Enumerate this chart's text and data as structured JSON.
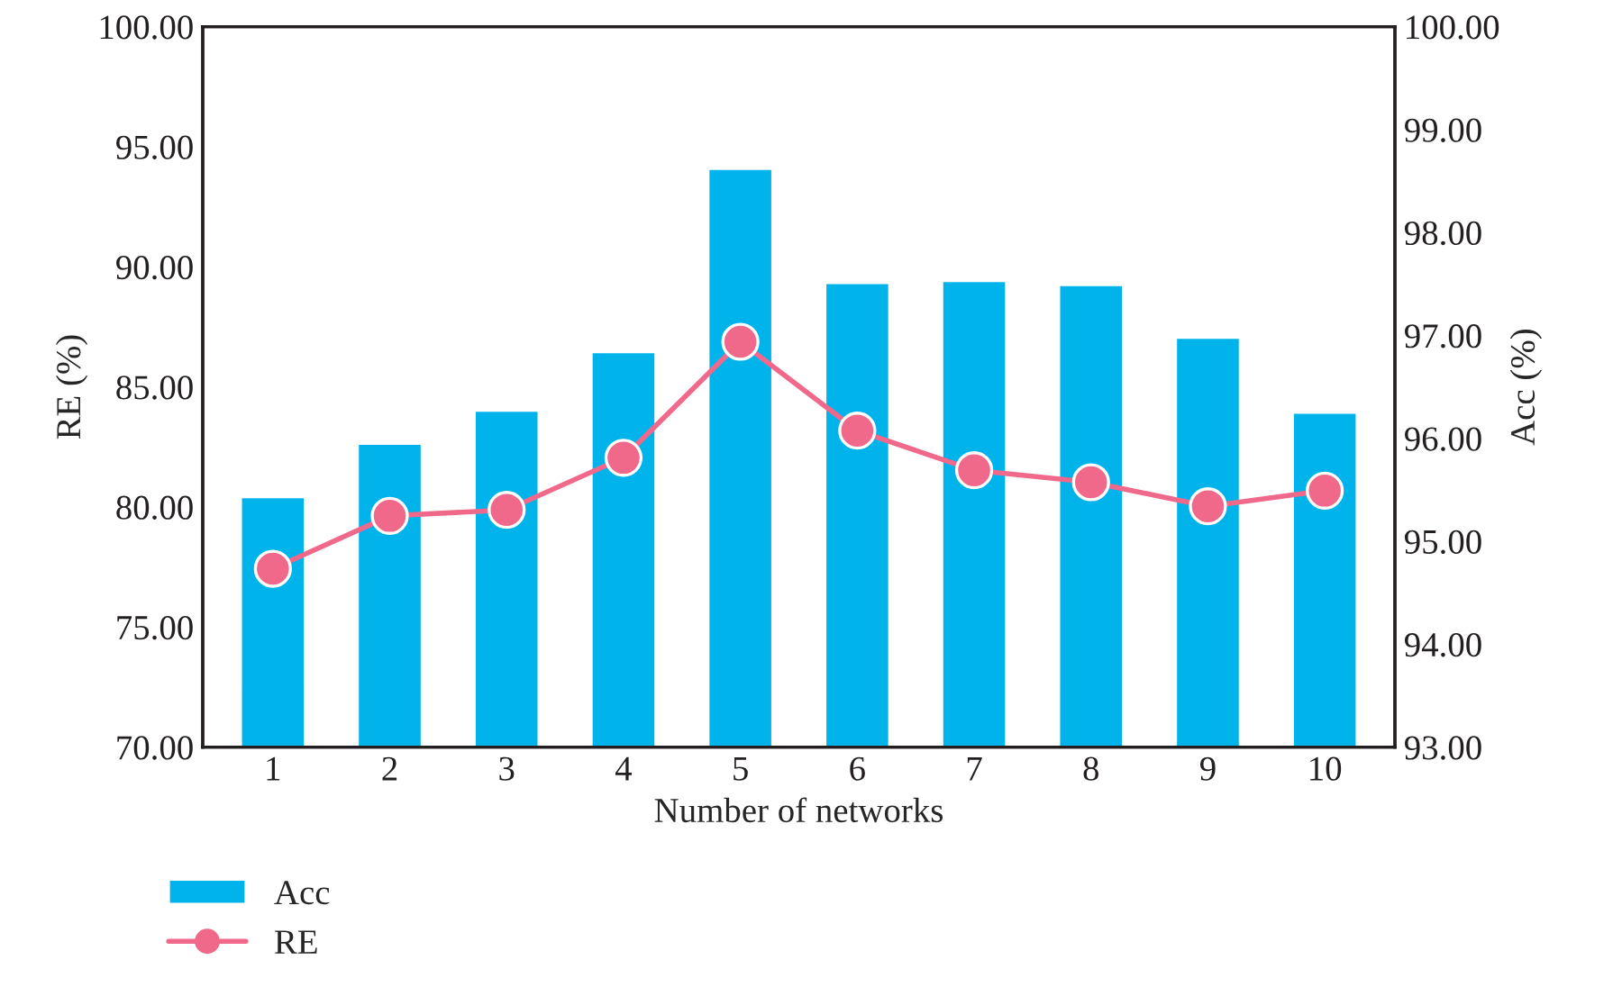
{
  "chart_data": {
    "type": "bar",
    "xlabel": "Number of networks",
    "ylabel": "RE (%)",
    "y2label": "Acc (%)",
    "categories": [
      "1",
      "2",
      "3",
      "4",
      "5",
      "6",
      "7",
      "8",
      "9",
      "10"
    ],
    "series": [
      {
        "name": "Acc",
        "axis": "y2",
        "color": "#00b4eb",
        "values": [
          95.43,
          95.95,
          96.27,
          96.84,
          98.62,
          97.51,
          97.53,
          97.49,
          96.98,
          96.25
        ]
      },
      {
        "name": "RE",
        "type": "line",
        "axis": "y",
        "color": "#f0698a",
        "marker": "circle",
        "line_style": "solid",
        "values": [
          77.43,
          79.63,
          79.88,
          82.05,
          86.88,
          83.18,
          81.53,
          81.03,
          80.03,
          80.68
        ]
      }
    ],
    "ylim": [
      70,
      100
    ],
    "yticks": [
      {
        "value": 70,
        "label": "70.00"
      },
      {
        "value": 75,
        "label": "75.00"
      },
      {
        "value": 80,
        "label": "80.00"
      },
      {
        "value": 85,
        "label": "85.00"
      },
      {
        "value": 90,
        "label": "90.00"
      },
      {
        "value": 95,
        "label": "95.00"
      },
      {
        "value": 100,
        "label": "100.00"
      }
    ],
    "y2lim": [
      93,
      100
    ],
    "y2ticks": [
      {
        "value": 93,
        "label": "93.00"
      },
      {
        "value": 94,
        "label": "94.00"
      },
      {
        "value": 95,
        "label": "95.00"
      },
      {
        "value": 96,
        "label": "96.00"
      },
      {
        "value": 97,
        "label": "97.00"
      },
      {
        "value": 98,
        "label": "98.00"
      },
      {
        "value": 99,
        "label": "99.00"
      },
      {
        "value": 100,
        "label": "100.00"
      }
    ],
    "grid": false,
    "legend": "bottom left"
  }
}
